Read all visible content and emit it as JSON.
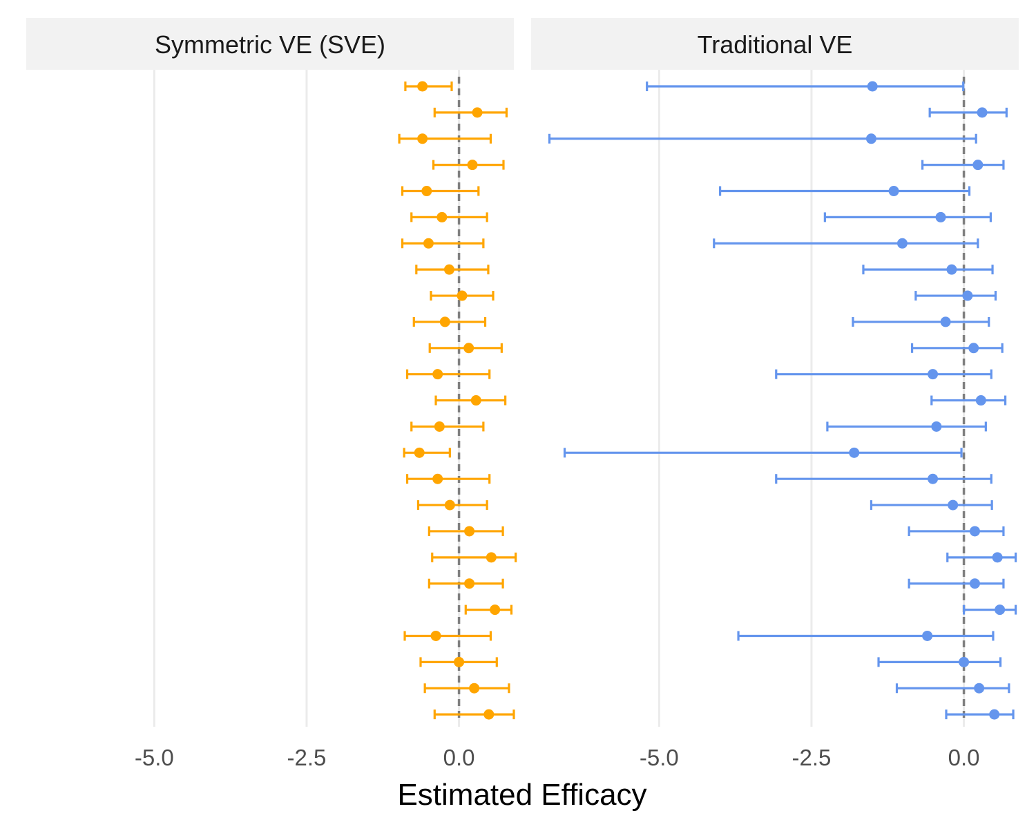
{
  "chart_data": {
    "type": "scatter",
    "subtype": "forest-plot-with-error-bars",
    "xlabel": "Estimated Efficacy",
    "x_ticks": [
      "-5.0",
      "-2.5",
      "0.0"
    ],
    "x_tick_values": [
      -5,
      -2.5,
      0
    ],
    "xlim": [
      -7.1,
      0.9
    ],
    "reference_line": {
      "x": 0,
      "style": "dashed"
    },
    "grid": "vertical major only",
    "legend": "none",
    "panels": [
      {
        "title": "Symmetric VE (SVE)",
        "color": "#FFA500",
        "points": [
          {
            "est": -0.6,
            "lo": -0.88,
            "hi": -0.12
          },
          {
            "est": 0.3,
            "lo": -0.4,
            "hi": 0.78
          },
          {
            "est": -0.6,
            "lo": -0.98,
            "hi": 0.52
          },
          {
            "est": 0.22,
            "lo": -0.42,
            "hi": 0.73
          },
          {
            "est": -0.53,
            "lo": -0.93,
            "hi": 0.32
          },
          {
            "est": -0.28,
            "lo": -0.78,
            "hi": 0.46
          },
          {
            "est": -0.5,
            "lo": -0.93,
            "hi": 0.4
          },
          {
            "est": -0.16,
            "lo": -0.7,
            "hi": 0.48
          },
          {
            "est": 0.05,
            "lo": -0.46,
            "hi": 0.56
          },
          {
            "est": -0.23,
            "lo": -0.74,
            "hi": 0.43
          },
          {
            "est": 0.16,
            "lo": -0.48,
            "hi": 0.7
          },
          {
            "est": -0.35,
            "lo": -0.85,
            "hi": 0.5
          },
          {
            "est": 0.28,
            "lo": -0.38,
            "hi": 0.76
          },
          {
            "est": -0.32,
            "lo": -0.78,
            "hi": 0.4
          },
          {
            "est": -0.65,
            "lo": -0.9,
            "hi": -0.15
          },
          {
            "est": -0.35,
            "lo": -0.85,
            "hi": 0.5
          },
          {
            "est": -0.15,
            "lo": -0.67,
            "hi": 0.46
          },
          {
            "est": 0.17,
            "lo": -0.49,
            "hi": 0.72
          },
          {
            "est": 0.53,
            "lo": -0.44,
            "hi": 0.93
          },
          {
            "est": 0.17,
            "lo": -0.49,
            "hi": 0.72
          },
          {
            "est": 0.59,
            "lo": 0.11,
            "hi": 0.86
          },
          {
            "est": -0.38,
            "lo": -0.89,
            "hi": 0.52
          },
          {
            "est": 0.0,
            "lo": -0.63,
            "hi": 0.62
          },
          {
            "est": 0.25,
            "lo": -0.56,
            "hi": 0.82
          },
          {
            "est": 0.49,
            "lo": -0.4,
            "hi": 0.9
          }
        ]
      },
      {
        "title": "Traditional VE",
        "color": "#6495ED",
        "points": [
          {
            "est": -1.5,
            "lo": -5.2,
            "hi": -0.01
          },
          {
            "est": 0.3,
            "lo": -0.56,
            "hi": 0.7
          },
          {
            "est": -1.52,
            "lo": -6.8,
            "hi": 0.2
          },
          {
            "est": 0.23,
            "lo": -0.68,
            "hi": 0.65
          },
          {
            "est": -1.15,
            "lo": -4.0,
            "hi": 0.09
          },
          {
            "est": -0.38,
            "lo": -2.28,
            "hi": 0.44
          },
          {
            "est": -1.01,
            "lo": -4.1,
            "hi": 0.23
          },
          {
            "est": -0.2,
            "lo": -1.65,
            "hi": 0.47
          },
          {
            "est": 0.06,
            "lo": -0.79,
            "hi": 0.52
          },
          {
            "est": -0.3,
            "lo": -1.82,
            "hi": 0.41
          },
          {
            "est": 0.16,
            "lo": -0.85,
            "hi": 0.63
          },
          {
            "est": -0.51,
            "lo": -3.08,
            "hi": 0.45
          },
          {
            "est": 0.28,
            "lo": -0.53,
            "hi": 0.68
          },
          {
            "est": -0.45,
            "lo": -2.24,
            "hi": 0.36
          },
          {
            "est": -1.8,
            "lo": -6.55,
            "hi": -0.04
          },
          {
            "est": -0.51,
            "lo": -3.08,
            "hi": 0.45
          },
          {
            "est": -0.18,
            "lo": -1.52,
            "hi": 0.46
          },
          {
            "est": 0.18,
            "lo": -0.9,
            "hi": 0.65
          },
          {
            "est": 0.55,
            "lo": -0.27,
            "hi": 0.85
          },
          {
            "est": 0.18,
            "lo": -0.9,
            "hi": 0.65
          },
          {
            "est": 0.59,
            "lo": 0.0,
            "hi": 0.85
          },
          {
            "est": -0.6,
            "lo": -3.7,
            "hi": 0.48
          },
          {
            "est": 0.0,
            "lo": -1.4,
            "hi": 0.6
          },
          {
            "est": 0.25,
            "lo": -1.1,
            "hi": 0.74
          },
          {
            "est": 0.5,
            "lo": -0.29,
            "hi": 0.81
          }
        ]
      }
    ]
  }
}
